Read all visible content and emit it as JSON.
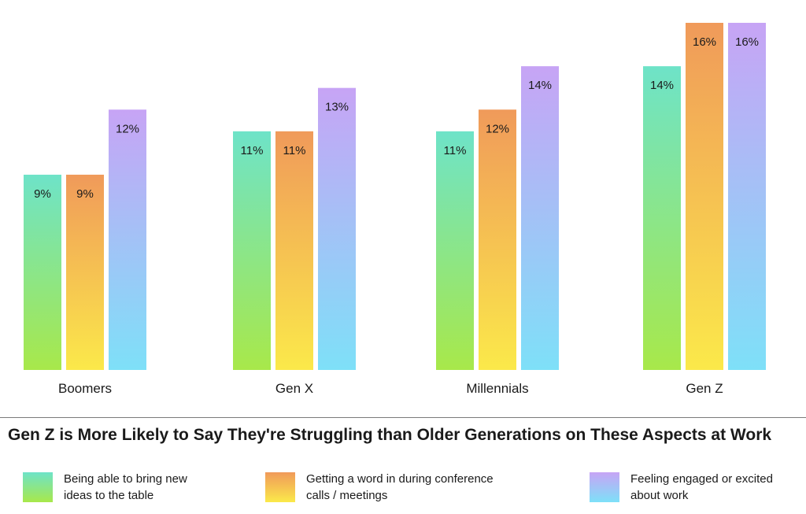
{
  "chart_data": {
    "type": "bar",
    "title": "Gen Z is More Likely to Say They're Struggling than Older Generations on These Aspects at  Work",
    "categories": [
      "Boomers",
      "Gen X",
      "Millennials",
      "Gen Z"
    ],
    "series": [
      {
        "name": "Being able to bring new ideas to the table",
        "values": [
          9,
          11,
          11,
          14
        ],
        "value_labels": [
          "9%",
          "11%",
          "11%",
          "14%"
        ],
        "gradient_top": "#6ee3c8",
        "gradient_bottom": "#a8e84a"
      },
      {
        "name": "Getting a word in during conference calls / meetings",
        "values": [
          9,
          11,
          12,
          16
        ],
        "value_labels": [
          "9%",
          "11%",
          "12%",
          "16%"
        ],
        "gradient_top": "#f09a5a",
        "gradient_bottom": "#fbe94a"
      },
      {
        "name": "Feeling engaged or excited about work",
        "values": [
          12,
          13,
          14,
          16
        ],
        "value_labels": [
          "12%",
          "13%",
          "14%",
          "16%"
        ],
        "gradient_top": "#c7a4f5",
        "gradient_bottom": "#7ee0f8"
      }
    ],
    "xlabel": "",
    "ylabel": "",
    "ylim": [
      0,
      16
    ],
    "grid": false,
    "legend_position": "bottom"
  },
  "legend": {
    "items": [
      {
        "line1": "Being able to bring new",
        "line2": "ideas to the table"
      },
      {
        "line1": "Getting a word in during conference",
        "line2": "calls / meetings"
      },
      {
        "line1": "Feeling engaged or excited",
        "line2": "about work"
      }
    ]
  }
}
